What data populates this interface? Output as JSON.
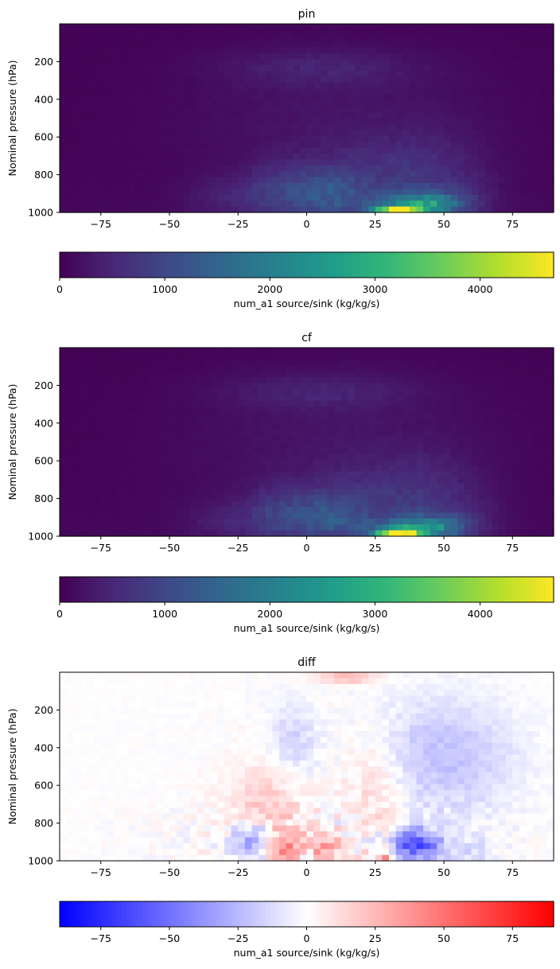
{
  "chart_data": [
    {
      "type": "heatmap",
      "title": "pin",
      "ylabel": "Nominal pressure (hPa)",
      "xlim": [
        -90,
        90
      ],
      "ylim": [
        1000,
        0
      ],
      "xticks": [
        "−75",
        "−50",
        "−25",
        "0",
        "25",
        "50",
        "75"
      ],
      "xtick_values": [
        -75,
        -50,
        -25,
        0,
        25,
        50,
        75
      ],
      "yticks": [
        "200",
        "400",
        "600",
        "800",
        "1000"
      ],
      "ytick_values": [
        200,
        400,
        600,
        800,
        1000
      ],
      "colormap": "viridis",
      "colorbar": {
        "label": "num_a1 source/sink (kg/kg/s)",
        "range": [
          0,
          4700
        ],
        "ticks": [
          "0",
          "1000",
          "2000",
          "3000",
          "4000"
        ],
        "tick_values": [
          0,
          1000,
          2000,
          3000,
          4000
        ]
      },
      "features": [
        {
          "lat": 33,
          "p": 990,
          "value": 4700
        },
        {
          "lat": 38,
          "p": 960,
          "value": 2000
        },
        {
          "lat": 45,
          "p": 940,
          "value": 1300
        },
        {
          "lat": 10,
          "p": 900,
          "value": 1000
        },
        {
          "lat": -10,
          "p": 880,
          "value": 800
        },
        {
          "lat": 5,
          "p": 230,
          "value": 400
        }
      ]
    },
    {
      "type": "heatmap",
      "title": "cf",
      "ylabel": "Nominal pressure (hPa)",
      "xlim": [
        -90,
        90
      ],
      "ylim": [
        1000,
        0
      ],
      "xticks": [
        "−75",
        "−50",
        "−25",
        "0",
        "25",
        "50",
        "75"
      ],
      "xtick_values": [
        -75,
        -50,
        -25,
        0,
        25,
        50,
        75
      ],
      "yticks": [
        "200",
        "400",
        "600",
        "800",
        "1000"
      ],
      "ytick_values": [
        200,
        400,
        600,
        800,
        1000
      ],
      "colormap": "viridis",
      "colorbar": {
        "label": "num_a1 source/sink (kg/kg/s)",
        "range": [
          0,
          4700
        ],
        "ticks": [
          "0",
          "1000",
          "2000",
          "3000",
          "4000"
        ],
        "tick_values": [
          0,
          1000,
          2000,
          3000,
          4000
        ]
      },
      "features": [
        {
          "lat": 33,
          "p": 990,
          "value": 4600
        },
        {
          "lat": 38,
          "p": 960,
          "value": 1900
        },
        {
          "lat": 45,
          "p": 940,
          "value": 1300
        },
        {
          "lat": 10,
          "p": 900,
          "value": 900
        },
        {
          "lat": -10,
          "p": 880,
          "value": 700
        },
        {
          "lat": 5,
          "p": 230,
          "value": 400
        }
      ]
    },
    {
      "type": "heatmap",
      "title": "diff",
      "ylabel": "Nominal pressure (hPa)",
      "xlim": [
        -90,
        90
      ],
      "ylim": [
        1000,
        0
      ],
      "xticks": [
        "−75",
        "−50",
        "−25",
        "0",
        "25",
        "50",
        "75"
      ],
      "xtick_values": [
        -75,
        -50,
        -25,
        0,
        25,
        50,
        75
      ],
      "yticks": [
        "200",
        "400",
        "600",
        "800",
        "1000"
      ],
      "ytick_values": [
        200,
        400,
        600,
        800,
        1000
      ],
      "colormap": "bwr",
      "colorbar": {
        "label": "num_a1 source/sink (kg/kg/s)",
        "range": [
          -90,
          90
        ],
        "ticks": [
          "−75",
          "−50",
          "−25",
          "0",
          "25",
          "50",
          "75"
        ],
        "tick_values": [
          -75,
          -50,
          -25,
          0,
          25,
          50,
          75
        ]
      },
      "features": [
        {
          "lat": 29,
          "p": 995,
          "value": 90
        },
        {
          "lat": -8,
          "p": 920,
          "value": 45
        },
        {
          "lat": 7,
          "p": 930,
          "value": 35
        },
        {
          "lat": 15,
          "p": 30,
          "value": 30
        },
        {
          "lat": 38,
          "p": 900,
          "value": -45
        },
        {
          "lat": -20,
          "p": 880,
          "value": -35
        },
        {
          "lat": 50,
          "p": 450,
          "value": -20
        },
        {
          "lat": -5,
          "p": 350,
          "value": -15
        }
      ]
    }
  ]
}
